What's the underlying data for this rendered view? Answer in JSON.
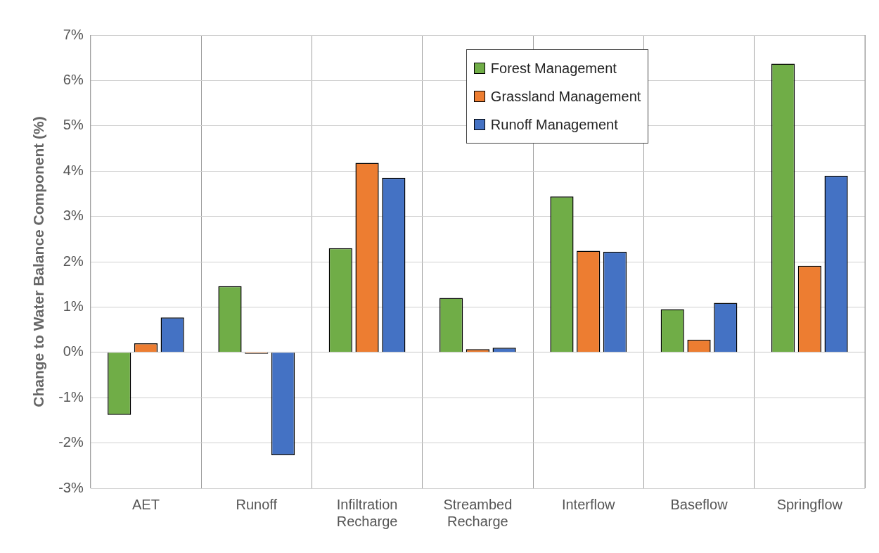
{
  "chart_data": {
    "type": "bar",
    "ylabel": "Change to Water Balance Component (%)",
    "categories": [
      "AET",
      "Runoff",
      "Infiltration Recharge",
      "Streambed Recharge",
      "Interflow",
      "Baseflow",
      "Springflow"
    ],
    "series": [
      {
        "name": "Forest Management",
        "color": "#70ad47",
        "values": [
          -1.38,
          1.46,
          2.3,
          1.2,
          3.44,
          0.95,
          6.37
        ]
      },
      {
        "name": "Grassland Management",
        "color": "#ed7d31",
        "values": [
          0.2,
          -0.03,
          4.18,
          0.07,
          2.24,
          0.28,
          1.91
        ]
      },
      {
        "name": "Runoff Management",
        "color": "#4472c4",
        "values": [
          0.77,
          -2.27,
          3.85,
          0.1,
          2.22,
          1.09,
          3.9
        ]
      }
    ],
    "ylim": [
      -3,
      7
    ],
    "yticks": [
      {
        "value": -3,
        "label": "-3%"
      },
      {
        "value": -2,
        "label": "-2%"
      },
      {
        "value": -1,
        "label": "-1%"
      },
      {
        "value": 0,
        "label": "0%"
      },
      {
        "value": 1,
        "label": "1%"
      },
      {
        "value": 2,
        "label": "2%"
      },
      {
        "value": 3,
        "label": "3%"
      },
      {
        "value": 4,
        "label": "4%"
      },
      {
        "value": 5,
        "label": "5%"
      },
      {
        "value": 6,
        "label": "6%"
      },
      {
        "value": 7,
        "label": "7%"
      }
    ],
    "grid": true,
    "legend": "top right"
  }
}
